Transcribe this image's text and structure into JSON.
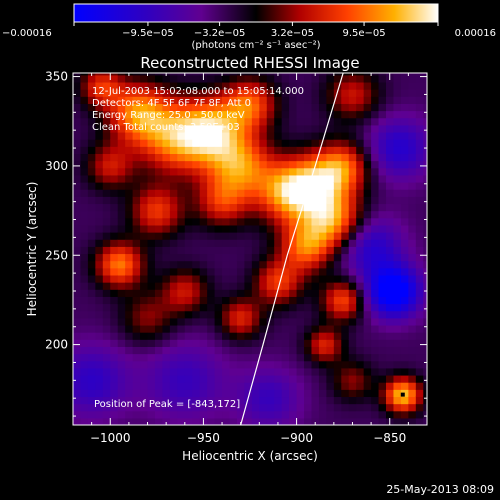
{
  "chart_data": {
    "type": "heatmap",
    "title": "Reconstructed RHESSI Image",
    "xlabel": "Heliocentric X (arcsec)",
    "ylabel": "Heliocentric Y (arcsec)",
    "xlim": [
      -1020,
      -830
    ],
    "ylim": [
      155,
      352
    ],
    "xticks": [
      -1000,
      -950,
      -900,
      -850
    ],
    "yticks": [
      200,
      250,
      300,
      350
    ],
    "xtick_labels": [
      "−1000",
      "−950",
      "−900",
      "−850"
    ],
    "ytick_labels": [
      "200",
      "250",
      "300",
      "350"
    ],
    "colorbar": {
      "range": [
        -0.00016,
        0.00016
      ],
      "ticks": [
        -0.00016,
        -9.5e-05,
        -3.2e-05,
        3.2e-05,
        9.5e-05,
        0.00016
      ],
      "tick_labels": [
        "−0.00016",
        "−9.5e−05",
        "−3.2e−05",
        "3.2e−05",
        "9.5e−05",
        "0.00016"
      ],
      "label": "(photons cm⁻² s⁻¹ asec⁻²)"
    },
    "annotations": {
      "time": "12-Jul-2003 15:02:08.000 to 15:05:14.000",
      "detectors": "Detectors: 4F 5F 6F 7F 8F, Att 0",
      "energy": "Energy Range: 25.0 - 50.0 keV",
      "clean": "Clean    Total counts: 2.50E+03",
      "peak": "Position of Peak = [-843,172]"
    },
    "peak_position": [
      -843,
      172
    ],
    "limb_curve": [
      [
        -930,
        155
      ],
      [
        -918,
        200
      ],
      [
        -905,
        250
      ],
      [
        -890,
        300
      ],
      [
        -875,
        352
      ]
    ],
    "sources": [
      {
        "x": -985,
        "y": 330,
        "amp": 0.00013,
        "r": 12
      },
      {
        "x": -965,
        "y": 315,
        "amp": 0.00012,
        "r": 14
      },
      {
        "x": -945,
        "y": 320,
        "amp": 0.00014,
        "r": 13
      },
      {
        "x": -930,
        "y": 300,
        "amp": 0.00012,
        "r": 12
      },
      {
        "x": -925,
        "y": 335,
        "amp": 0.00011,
        "r": 10
      },
      {
        "x": -940,
        "y": 280,
        "amp": 9e-05,
        "r": 10
      },
      {
        "x": -905,
        "y": 285,
        "amp": 0.00013,
        "r": 12
      },
      {
        "x": -890,
        "y": 290,
        "amp": 0.00012,
        "r": 12
      },
      {
        "x": -875,
        "y": 300,
        "amp": 0.00011,
        "r": 10
      },
      {
        "x": -880,
        "y": 270,
        "amp": 0.00013,
        "r": 11
      },
      {
        "x": -895,
        "y": 255,
        "amp": 0.00012,
        "r": 10
      },
      {
        "x": -910,
        "y": 235,
        "amp": 0.0001,
        "r": 9
      },
      {
        "x": -975,
        "y": 275,
        "amp": 0.0001,
        "r": 10
      },
      {
        "x": -1000,
        "y": 300,
        "amp": 8e-05,
        "r": 9
      },
      {
        "x": -995,
        "y": 245,
        "amp": 0.00013,
        "r": 9
      },
      {
        "x": -980,
        "y": 215,
        "amp": 6e-05,
        "r": 10
      },
      {
        "x": -960,
        "y": 230,
        "amp": 8e-05,
        "r": 9
      },
      {
        "x": -930,
        "y": 215,
        "amp": 9e-05,
        "r": 8
      },
      {
        "x": -875,
        "y": 225,
        "amp": 0.00011,
        "r": 8
      },
      {
        "x": -885,
        "y": 200,
        "amp": 9e-05,
        "r": 7
      },
      {
        "x": -870,
        "y": 180,
        "amp": 6e-05,
        "r": 8
      },
      {
        "x": -843,
        "y": 172,
        "amp": 0.00016,
        "r": 7
      },
      {
        "x": -1005,
        "y": 345,
        "amp": 9e-05,
        "r": 8
      },
      {
        "x": -870,
        "y": 340,
        "amp": 8e-05,
        "r": 10
      },
      {
        "x": -848,
        "y": 230,
        "amp": -0.00016,
        "r": 10
      },
      {
        "x": -860,
        "y": 255,
        "amp": -8e-05,
        "r": 12
      },
      {
        "x": -845,
        "y": 310,
        "amp": -8e-05,
        "r": 12
      },
      {
        "x": -1010,
        "y": 180,
        "amp": -7e-05,
        "r": 14
      },
      {
        "x": -960,
        "y": 180,
        "amp": -6e-05,
        "r": 15
      },
      {
        "x": -915,
        "y": 170,
        "amp": -6e-05,
        "r": 12
      }
    ]
  },
  "footer": {
    "date": "25-May-2013 08:09"
  }
}
